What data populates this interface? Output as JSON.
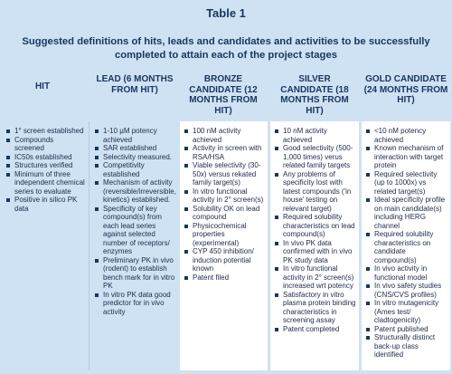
{
  "table": {
    "title": "Table 1",
    "subtitle": "Suggested definitions of hits, leads and candidates and activities to  be successfully completed to attain each of the project stages"
  },
  "columns": [
    {
      "header": "HIT",
      "items": [
        "1° screen established",
        "Compounds screened",
        "IC50s established",
        "Structures verified",
        "Minimum of three independent chemical series to evaluate",
        "Positive in silico PK data"
      ]
    },
    {
      "header": "LEAD (6 MONTHS FROM HIT)",
      "items": [
        "1-10 µM potency achieved",
        "SAR established",
        "Selectivity measured.",
        "Competitivity established",
        "Mechanism of activity (reversible/irreversible, kinetics) established.",
        "Specificity of key compound(s) from each lead series against selected number of receptors/ enzymes",
        "Preliminary PK in vivo (rodent) to establish bench mark for in vitro PK",
        "In vitro PK data good predictor for in vivo activity"
      ]
    },
    {
      "header": "BRONZE CANDIDATE (12 MONTHS FROM HIT)",
      "items": [
        "100 nM activity achieved",
        "Activity in screen with RSA/HSA",
        "Viable selectivity (30-50x) versus rekated family target(s)",
        "In vitro functional activity in 2° screen(s)",
        "Solubility OK on lead compound",
        "Physicochemical properties (experimental)",
        "CYP 450 inhibition/ induction potential known",
        "Patent filed"
      ]
    },
    {
      "header": "SILVER CANDIDATE (18 MONTHS FROM HIT)",
      "items": [
        "10 nM activity achieved",
        "Good selectivity (500-1,000 times) verus related family targets",
        "Any problems of specificity lost with latest compounds ('in house' testing on relevant target)",
        "Required solubility characteristics on lead compound(s)",
        "In vivo PK data confirmed with in vivo PK study data",
        "In vitro functional activity in 2° screen(s) increased wrt potency",
        "Satisfactory in vitro plasma protein binding characteristics in screening assay",
        "Patent completed"
      ]
    },
    {
      "header": "GOLD CANDIDATE (24 MONTHS FROM HIT)",
      "items": [
        "<10 nM potency achieved",
        "Known mechanism of interaction with target protein",
        "Required selectivity (up to 1000x) vs related target(s)",
        "Ideal specificity profile on main candidate(s) including HERG channel",
        "Required solubility characteristics on candidate compound(s)",
        "In vivo activity in functional model",
        "In vivo safety studies (CNS/CVS profiles)",
        "In vitro mutagenicity (Ames test/ cladtogenicity)",
        "Patent published",
        "Structurally distinct back-up class identified"
      ]
    }
  ]
}
